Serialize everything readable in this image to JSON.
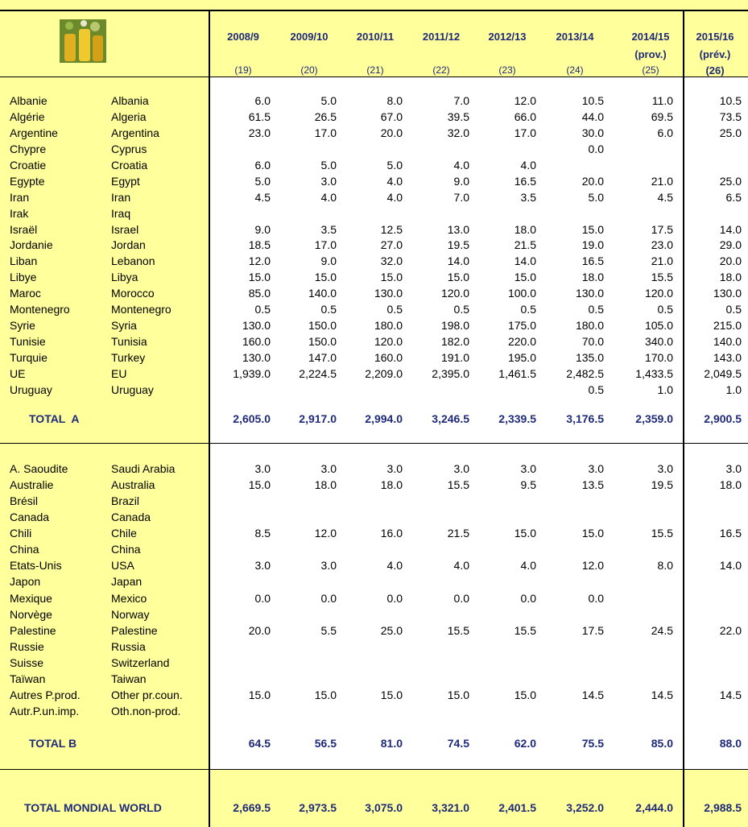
{
  "table": {
    "columns": [
      {
        "year": "2008/9",
        "no": "(19)"
      },
      {
        "year": "2009/10",
        "no": "(20)"
      },
      {
        "year": "2010/11",
        "no": "(21)"
      },
      {
        "year": "2011/12",
        "no": "(22)"
      },
      {
        "year": "2012/13",
        "no": "(23)"
      },
      {
        "year": "2013/14",
        "no": "(24)"
      },
      {
        "year": "2014/15",
        "note": "(prov.)",
        "no": "(25)"
      },
      {
        "year": "2015/16",
        "note": "(prév.)",
        "no": "(26)"
      }
    ],
    "sections": [
      {
        "rows": [
          {
            "fr": "Albanie",
            "en": "Albania",
            "values": [
              "6.0",
              "5.0",
              "8.0",
              "7.0",
              "12.0",
              "10.5",
              "11.0",
              "10.5"
            ]
          },
          {
            "fr": "Algérie",
            "en": "Algeria",
            "values": [
              "61.5",
              "26.5",
              "67.0",
              "39.5",
              "66.0",
              "44.0",
              "69.5",
              "73.5"
            ]
          },
          {
            "fr": "Argentine",
            "en": "Argentina",
            "values": [
              "23.0",
              "17.0",
              "20.0",
              "32.0",
              "17.0",
              "30.0",
              "6.0",
              "25.0"
            ]
          },
          {
            "fr": "Chypre",
            "en": "Cyprus",
            "values": [
              null,
              null,
              null,
              null,
              null,
              "0.0",
              null,
              null
            ]
          },
          {
            "fr": "Croatie",
            "en": "Croatia",
            "values": [
              "6.0",
              "5.0",
              "5.0",
              "4.0",
              "4.0",
              null,
              null,
              null
            ]
          },
          {
            "fr": "Egypte",
            "en": "Egypt",
            "values": [
              "5.0",
              "3.0",
              "4.0",
              "9.0",
              "16.5",
              "20.0",
              "21.0",
              "25.0"
            ]
          },
          {
            "fr": "Iran",
            "en": "Iran",
            "values": [
              "4.5",
              "4.0",
              "4.0",
              "7.0",
              "3.5",
              "5.0",
              "4.5",
              "6.5"
            ]
          },
          {
            "fr": "Irak",
            "en": "Iraq",
            "values": [
              null,
              null,
              null,
              null,
              null,
              null,
              null,
              null
            ]
          },
          {
            "fr": "Israël",
            "en": "Israel",
            "values": [
              "9.0",
              "3.5",
              "12.5",
              "13.0",
              "18.0",
              "15.0",
              "17.5",
              "14.0"
            ]
          },
          {
            "fr": "Jordanie",
            "en": "Jordan",
            "values": [
              "18.5",
              "17.0",
              "27.0",
              "19.5",
              "21.5",
              "19.0",
              "23.0",
              "29.0"
            ]
          },
          {
            "fr": "Liban",
            "en": "Lebanon",
            "values": [
              "12.0",
              "9.0",
              "32.0",
              "14.0",
              "14.0",
              "16.5",
              "21.0",
              "20.0"
            ]
          },
          {
            "fr": "Libye",
            "en": "Libya",
            "values": [
              "15.0",
              "15.0",
              "15.0",
              "15.0",
              "15.0",
              "18.0",
              "15.5",
              "18.0"
            ]
          },
          {
            "fr": "Maroc",
            "en": "Morocco",
            "values": [
              "85.0",
              "140.0",
              "130.0",
              "120.0",
              "100.0",
              "130.0",
              "120.0",
              "130.0"
            ]
          },
          {
            "fr": "Montenegro",
            "en": "Montenegro",
            "values": [
              "0.5",
              "0.5",
              "0.5",
              "0.5",
              "0.5",
              "0.5",
              "0.5",
              "0.5"
            ]
          },
          {
            "fr": "Syrie",
            "en": "Syria",
            "values": [
              "130.0",
              "150.0",
              "180.0",
              "198.0",
              "175.0",
              "180.0",
              "105.0",
              "215.0"
            ]
          },
          {
            "fr": "Tunisie",
            "en": "Tunisia",
            "values": [
              "160.0",
              "150.0",
              "120.0",
              "182.0",
              "220.0",
              "70.0",
              "340.0",
              "140.0"
            ]
          },
          {
            "fr": "Turquie",
            "en": "Turkey",
            "values": [
              "130.0",
              "147.0",
              "160.0",
              "191.0",
              "195.0",
              "135.0",
              "170.0",
              "143.0"
            ]
          },
          {
            "fr": "UE",
            "en": "EU",
            "values": [
              "1,939.0",
              "2,224.5",
              "2,209.0",
              "2,395.0",
              "1,461.5",
              "2,482.5",
              "1,433.5",
              "2,049.5"
            ]
          },
          {
            "fr": "Uruguay",
            "en": "Uruguay",
            "values": [
              null,
              null,
              null,
              null,
              null,
              "0.5",
              "1.0",
              "1.0"
            ]
          }
        ],
        "total": {
          "label": "TOTAL  A",
          "values": [
            "2,605.0",
            "2,917.0",
            "2,994.0",
            "3,246.5",
            "2,339.5",
            "3,176.5",
            "2,359.0",
            "2,900.5"
          ]
        }
      },
      {
        "rows": [
          {
            "fr": "A. Saoudite",
            "en": "Saudi Arabia",
            "values": [
              "3.0",
              "3.0",
              "3.0",
              "3.0",
              "3.0",
              "3.0",
              "3.0",
              "3.0"
            ]
          },
          {
            "fr": "Australie",
            "en": "Australia",
            "values": [
              "15.0",
              "18.0",
              "18.0",
              "15.5",
              "9.5",
              "13.5",
              "19.5",
              "18.0"
            ]
          },
          {
            "fr": "Brésil",
            "en": "Brazil",
            "values": [
              null,
              null,
              null,
              null,
              null,
              null,
              null,
              null
            ]
          },
          {
            "fr": "Canada",
            "en": "Canada",
            "values": [
              null,
              null,
              null,
              null,
              null,
              null,
              null,
              null
            ]
          },
          {
            "fr": "Chili",
            "en": "Chile",
            "values": [
              "8.5",
              "12.0",
              "16.0",
              "21.5",
              "15.0",
              "15.0",
              "15.5",
              "16.5"
            ]
          },
          {
            "fr": "China",
            "en": "China",
            "values": [
              null,
              null,
              null,
              null,
              null,
              null,
              null,
              null
            ]
          },
          {
            "fr": "Etats-Unis",
            "en": "USA",
            "values": [
              "3.0",
              "3.0",
              "4.0",
              "4.0",
              "4.0",
              "12.0",
              "8.0",
              "14.0"
            ]
          },
          {
            "fr": "Japon",
            "en": "Japan",
            "values": [
              null,
              null,
              null,
              null,
              null,
              null,
              null,
              null
            ]
          },
          {
            "fr": "Mexique",
            "en": "Mexico",
            "values": [
              "0.0",
              "0.0",
              "0.0",
              "0.0",
              "0.0",
              "0.0",
              null,
              null
            ]
          },
          {
            "fr": "Norvège",
            "en": "Norway",
            "values": [
              null,
              null,
              null,
              null,
              null,
              null,
              null,
              null
            ]
          },
          {
            "fr": "Palestine",
            "en": "Palestine",
            "values": [
              "20.0",
              "5.5",
              "25.0",
              "15.5",
              "15.5",
              "17.5",
              "24.5",
              "22.0"
            ]
          },
          {
            "fr": "Russie",
            "en": "Russia",
            "values": [
              null,
              null,
              null,
              null,
              null,
              null,
              null,
              null
            ]
          },
          {
            "fr": "Suisse",
            "en": "Switzerland",
            "values": [
              null,
              null,
              null,
              null,
              null,
              null,
              null,
              null
            ]
          },
          {
            "fr": "Taïwan",
            "en": "Taiwan",
            "values": [
              null,
              null,
              null,
              null,
              null,
              null,
              null,
              null
            ]
          },
          {
            "fr": "Autres P.prod.",
            "en": "Other pr.coun.",
            "values": [
              "15.0",
              "15.0",
              "15.0",
              "15.0",
              "15.0",
              "14.5",
              "14.5",
              "14.5"
            ]
          },
          {
            "fr": "Autr.P.un.imp.",
            "en": "Oth.non-prod.",
            "values": [
              null,
              null,
              null,
              null,
              null,
              null,
              null,
              null
            ]
          }
        ],
        "total": {
          "label": "TOTAL B",
          "values": [
            "64.5",
            "56.5",
            "81.0",
            "74.5",
            "62.0",
            "75.5",
            "85.0",
            "88.0"
          ]
        }
      }
    ],
    "world": {
      "label": "TOTAL MONDIAL WORLD",
      "values": [
        "2,669.5",
        "2,973.5",
        "3,075.0",
        "3,321.0",
        "2,401.5",
        "3,252.0",
        "2,444.0",
        "2,988.5"
      ]
    }
  }
}
